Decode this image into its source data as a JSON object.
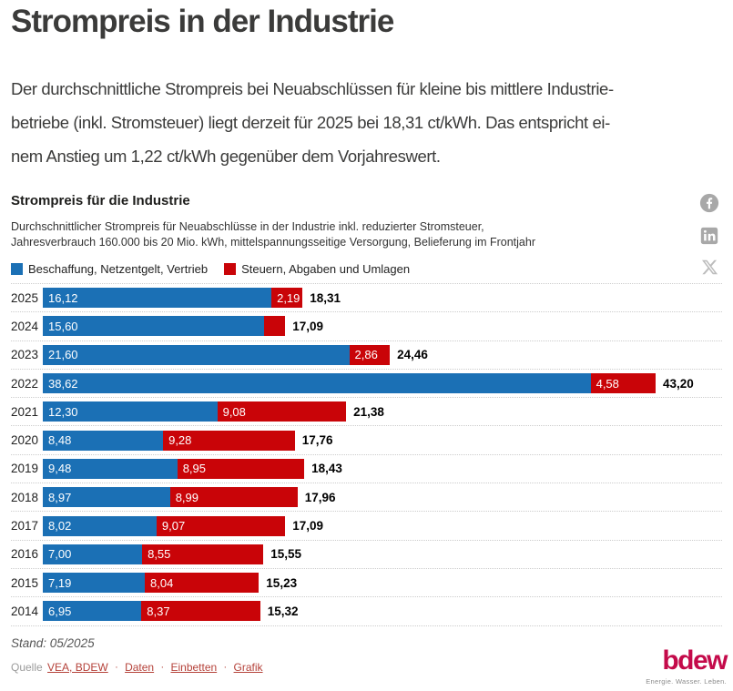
{
  "page": {
    "title": "Strompreis in der Industrie",
    "intro_lines": [
      "Der durchschnittliche Strompreis bei Neuabschlüssen für kleine bis mittlere Industrie-",
      "betriebe (inkl. Stromsteuer) liegt derzeit für 2025 bei 18,31 ct/kWh. Das entspricht ei-",
      "nem Anstieg um 1,22 ct/kWh gegenüber dem Vorjahreswert."
    ]
  },
  "chart": {
    "title": "Strompreis für die Industrie",
    "description_lines": [
      "Durchschnittlicher Strompreis für Neuabschlüsse in der Industrie inkl. reduzierter Stromsteuer,",
      "Jahresverbrauch 160.000 bis 20 Mio. kWh, mittelspannungsseitige Versorgung, Belieferung im Frontjahr"
    ],
    "legend": [
      {
        "label": "Beschaffung, Netzentgelt, Vertrieb",
        "color": "#1b70b5"
      },
      {
        "label": "Steuern, Abgaben und Umlagen",
        "color": "#c90408"
      }
    ],
    "share_icons": [
      "facebook",
      "linkedin",
      "x"
    ]
  },
  "chart_data": {
    "type": "bar",
    "orientation": "horizontal",
    "stacked": true,
    "unit": "ct/kWh",
    "title": "Strompreis für die Industrie",
    "legend_position": "top",
    "grid": "dotted row separators",
    "xmax": 43.2,
    "categories": [
      "2025",
      "2024",
      "2023",
      "2022",
      "2021",
      "2020",
      "2019",
      "2018",
      "2017",
      "2016",
      "2015",
      "2014"
    ],
    "series": [
      {
        "name": "Beschaffung, Netzentgelt, Vertrieb",
        "color": "#1b70b5",
        "values": [
          16.12,
          15.6,
          21.6,
          38.62,
          12.3,
          8.48,
          9.48,
          8.97,
          8.02,
          7.0,
          7.19,
          6.95
        ],
        "labels": [
          "16,12",
          "15,60",
          "21,60",
          "38,62",
          "12,30",
          "8,48",
          "9,48",
          "8,97",
          "8,02",
          "7,00",
          "7,19",
          "6,95"
        ]
      },
      {
        "name": "Steuern, Abgaben und Umlagen",
        "color": "#c90408",
        "values": [
          2.19,
          1.49,
          2.86,
          4.58,
          9.08,
          9.28,
          8.95,
          8.99,
          9.07,
          8.55,
          8.04,
          8.37
        ],
        "labels": [
          "2,19",
          "",
          "2,86",
          "4,58",
          "9,08",
          "9,28",
          "8,95",
          "8,99",
          "9,07",
          "8,55",
          "8,04",
          "8,37"
        ]
      }
    ],
    "totals": [
      18.31,
      17.09,
      24.46,
      43.2,
      21.38,
      17.76,
      18.43,
      17.96,
      17.09,
      15.55,
      15.23,
      15.32
    ],
    "total_labels": [
      "18,31",
      "17,09",
      "24,46",
      "43,20",
      "21,38",
      "17,76",
      "18,43",
      "17,96",
      "17,09",
      "15,55",
      "15,23",
      "15,32"
    ]
  },
  "footer": {
    "stand": "Stand: 05/2025",
    "source_label": "Quelle",
    "links": [
      "VEA, BDEW",
      "Daten",
      "Einbetten",
      "Grafik"
    ],
    "link_separator": "·",
    "logo_text": "bdew",
    "logo_tagline": "Energie. Wasser. Leben.",
    "logo_color": "#c40a4a"
  }
}
